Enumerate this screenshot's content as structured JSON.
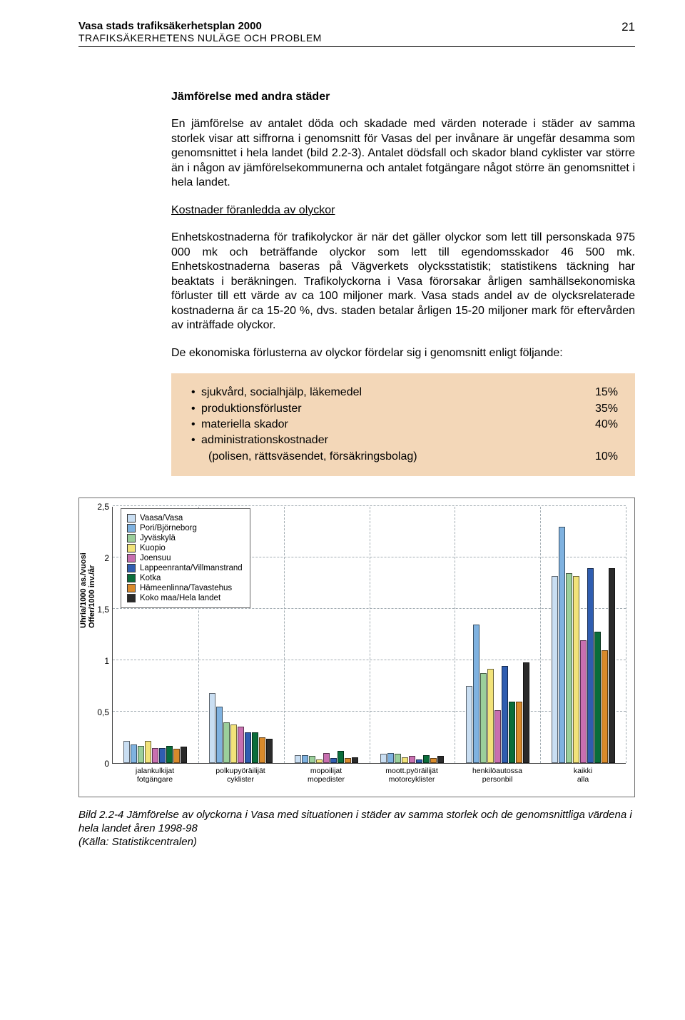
{
  "header": {
    "title": "Vasa stads trafiksäkerhetsplan 2000",
    "subtitle": "TRAFIKSÄKERHETENS NULÄGE OCH PROBLEM",
    "page_number": "21"
  },
  "body": {
    "section_title": "Jämförelse med andra städer",
    "para1": "En jämförelse av antalet döda och skadade med värden noterade i städer av samma storlek visar att siffrorna i genomsnitt  för Vasas del per invånare är ungefär desamma som genomsnittet i hela landet (bild 2.2-3). Antalet dödsfall och skador bland cyklister var större än i någon av jämförelsekommunerna och antalet fotgängare något större än genomsnittet i hela landet.",
    "sub_title": "Kostnader föranledda av olyckor",
    "para2": "Enhetskostnaderna för trafikolyckor är när det gäller olyckor som lett till personskada 975 000 mk och beträffande olyckor som lett till egendomsskador 46 500 mk. Enhetskostnaderna baseras på Vägverkets olycksstatistik; statistikens täckning har beaktats i beräkningen. Trafikolyckorna i Vasa förorsakar årligen samhällsekonomiska förluster till ett värde av ca 100 miljoner mark. Vasa stads andel av de olycksrelaterade kostnaderna är ca 15-20 %, dvs. staden betalar årligen 15-20 miljoner mark för eftervården av inträffade olyckor.",
    "para3": "De ekonomiska förlusterna av olyckor fördelar sig i genomsnitt enligt följande:",
    "highlight": {
      "background_color": "#f3d7b8",
      "items": [
        {
          "label": "sjukvård, socialhjälp, läkemedel",
          "pct": "15%"
        },
        {
          "label": "produktionsförluster",
          "pct": "35%"
        },
        {
          "label": "materiella skador",
          "pct": "40%"
        },
        {
          "label": "administrationskostnader",
          "pct": ""
        },
        {
          "label": "(polisen, rättsväsendet, försäkringsbolag)",
          "pct": "10%",
          "indent": true
        }
      ]
    }
  },
  "chart": {
    "type": "bar",
    "ylim": [
      0,
      2.5
    ],
    "ytick_step": 0.5,
    "yticks": [
      "0",
      "0,5",
      "1",
      "1,5",
      "2",
      "2,5"
    ],
    "yaxis_title": "Uhria/1000 as./vuosi\nOffer/1000 inv./år",
    "grid_color": "#a3adb3",
    "background_color": "#ffffff",
    "border_color": "#6e6e6e",
    "bar_border_color": "rgba(0,0,0,0.55)",
    "series": [
      {
        "name": "Vaasa/Vasa",
        "color": "#c9def2"
      },
      {
        "name": "Pori/Björneborg",
        "color": "#7fb2e0"
      },
      {
        "name": "Jyväskylä",
        "color": "#9bcf9b"
      },
      {
        "name": "Kuopio",
        "color": "#f2e37a"
      },
      {
        "name": "Joensuu",
        "color": "#c86fb0"
      },
      {
        "name": "Lappeenranta/Villmanstrand",
        "color": "#2f5db0"
      },
      {
        "name": "Kotka",
        "color": "#0a6d3a"
      },
      {
        "name": "Hämeenlinna/Tavastehus",
        "color": "#d98a2b"
      },
      {
        "name": "Koko maa/Hela landet",
        "color": "#2a2a2a"
      }
    ],
    "categories": [
      {
        "label": "jalankulkijat\nfotgängare",
        "values": [
          0.22,
          0.18,
          0.17,
          0.22,
          0.15,
          0.15,
          0.17,
          0.14,
          0.16
        ]
      },
      {
        "label": "polkupyöräilijät\ncyklister",
        "values": [
          0.68,
          0.55,
          0.4,
          0.38,
          0.36,
          0.3,
          0.3,
          0.25,
          0.24
        ]
      },
      {
        "label": "mopoilijat\nmopedister",
        "values": [
          0.08,
          0.08,
          0.07,
          0.04,
          0.1,
          0.05,
          0.12,
          0.05,
          0.06
        ]
      },
      {
        "label": "moott.pyöräilijät\nmotorcyklister",
        "values": [
          0.09,
          0.1,
          0.09,
          0.06,
          0.07,
          0.04,
          0.08,
          0.05,
          0.07
        ]
      },
      {
        "label": "henkilöautossa\npersonbil",
        "values": [
          0.75,
          1.35,
          0.88,
          0.92,
          0.52,
          0.95,
          0.6,
          0.6,
          0.98
        ]
      },
      {
        "label": "kaikki\nalla",
        "values": [
          1.82,
          2.3,
          1.85,
          1.82,
          1.2,
          1.9,
          1.28,
          1.1,
          1.9
        ]
      }
    ]
  },
  "caption": {
    "line1": "Bild 2.2-4  Jämförelse av olyckorna i Vasa med situationen i städer av samma storlek och de genomsnittliga värdena i hela landet åren 1998-98",
    "line2": "(Källa: Statistikcentralen)"
  }
}
